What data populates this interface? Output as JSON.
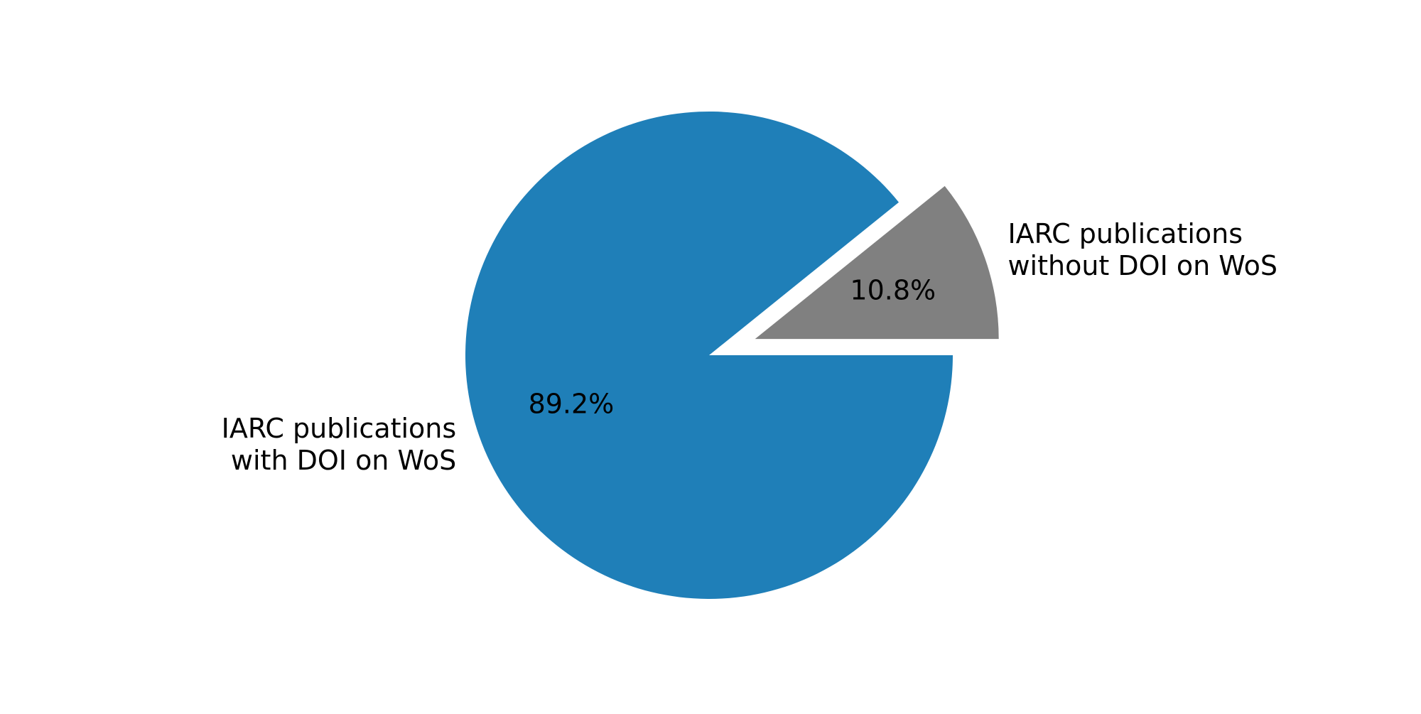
{
  "chart_data": {
    "type": "pie",
    "title": "",
    "start_angle_deg": 0,
    "direction": "clockwise",
    "slices": [
      {
        "label_lines": [
          "IARC publications",
          "with DOI on WoS"
        ],
        "value": 89.2,
        "pct_label": "89.2%",
        "color": "#1f7fb8",
        "explode": 0
      },
      {
        "label_lines": [
          "IARC publications",
          "without DOI on WoS"
        ],
        "value": 10.8,
        "pct_label": "10.8%",
        "color": "#808080",
        "explode": 0.2
      }
    ]
  }
}
